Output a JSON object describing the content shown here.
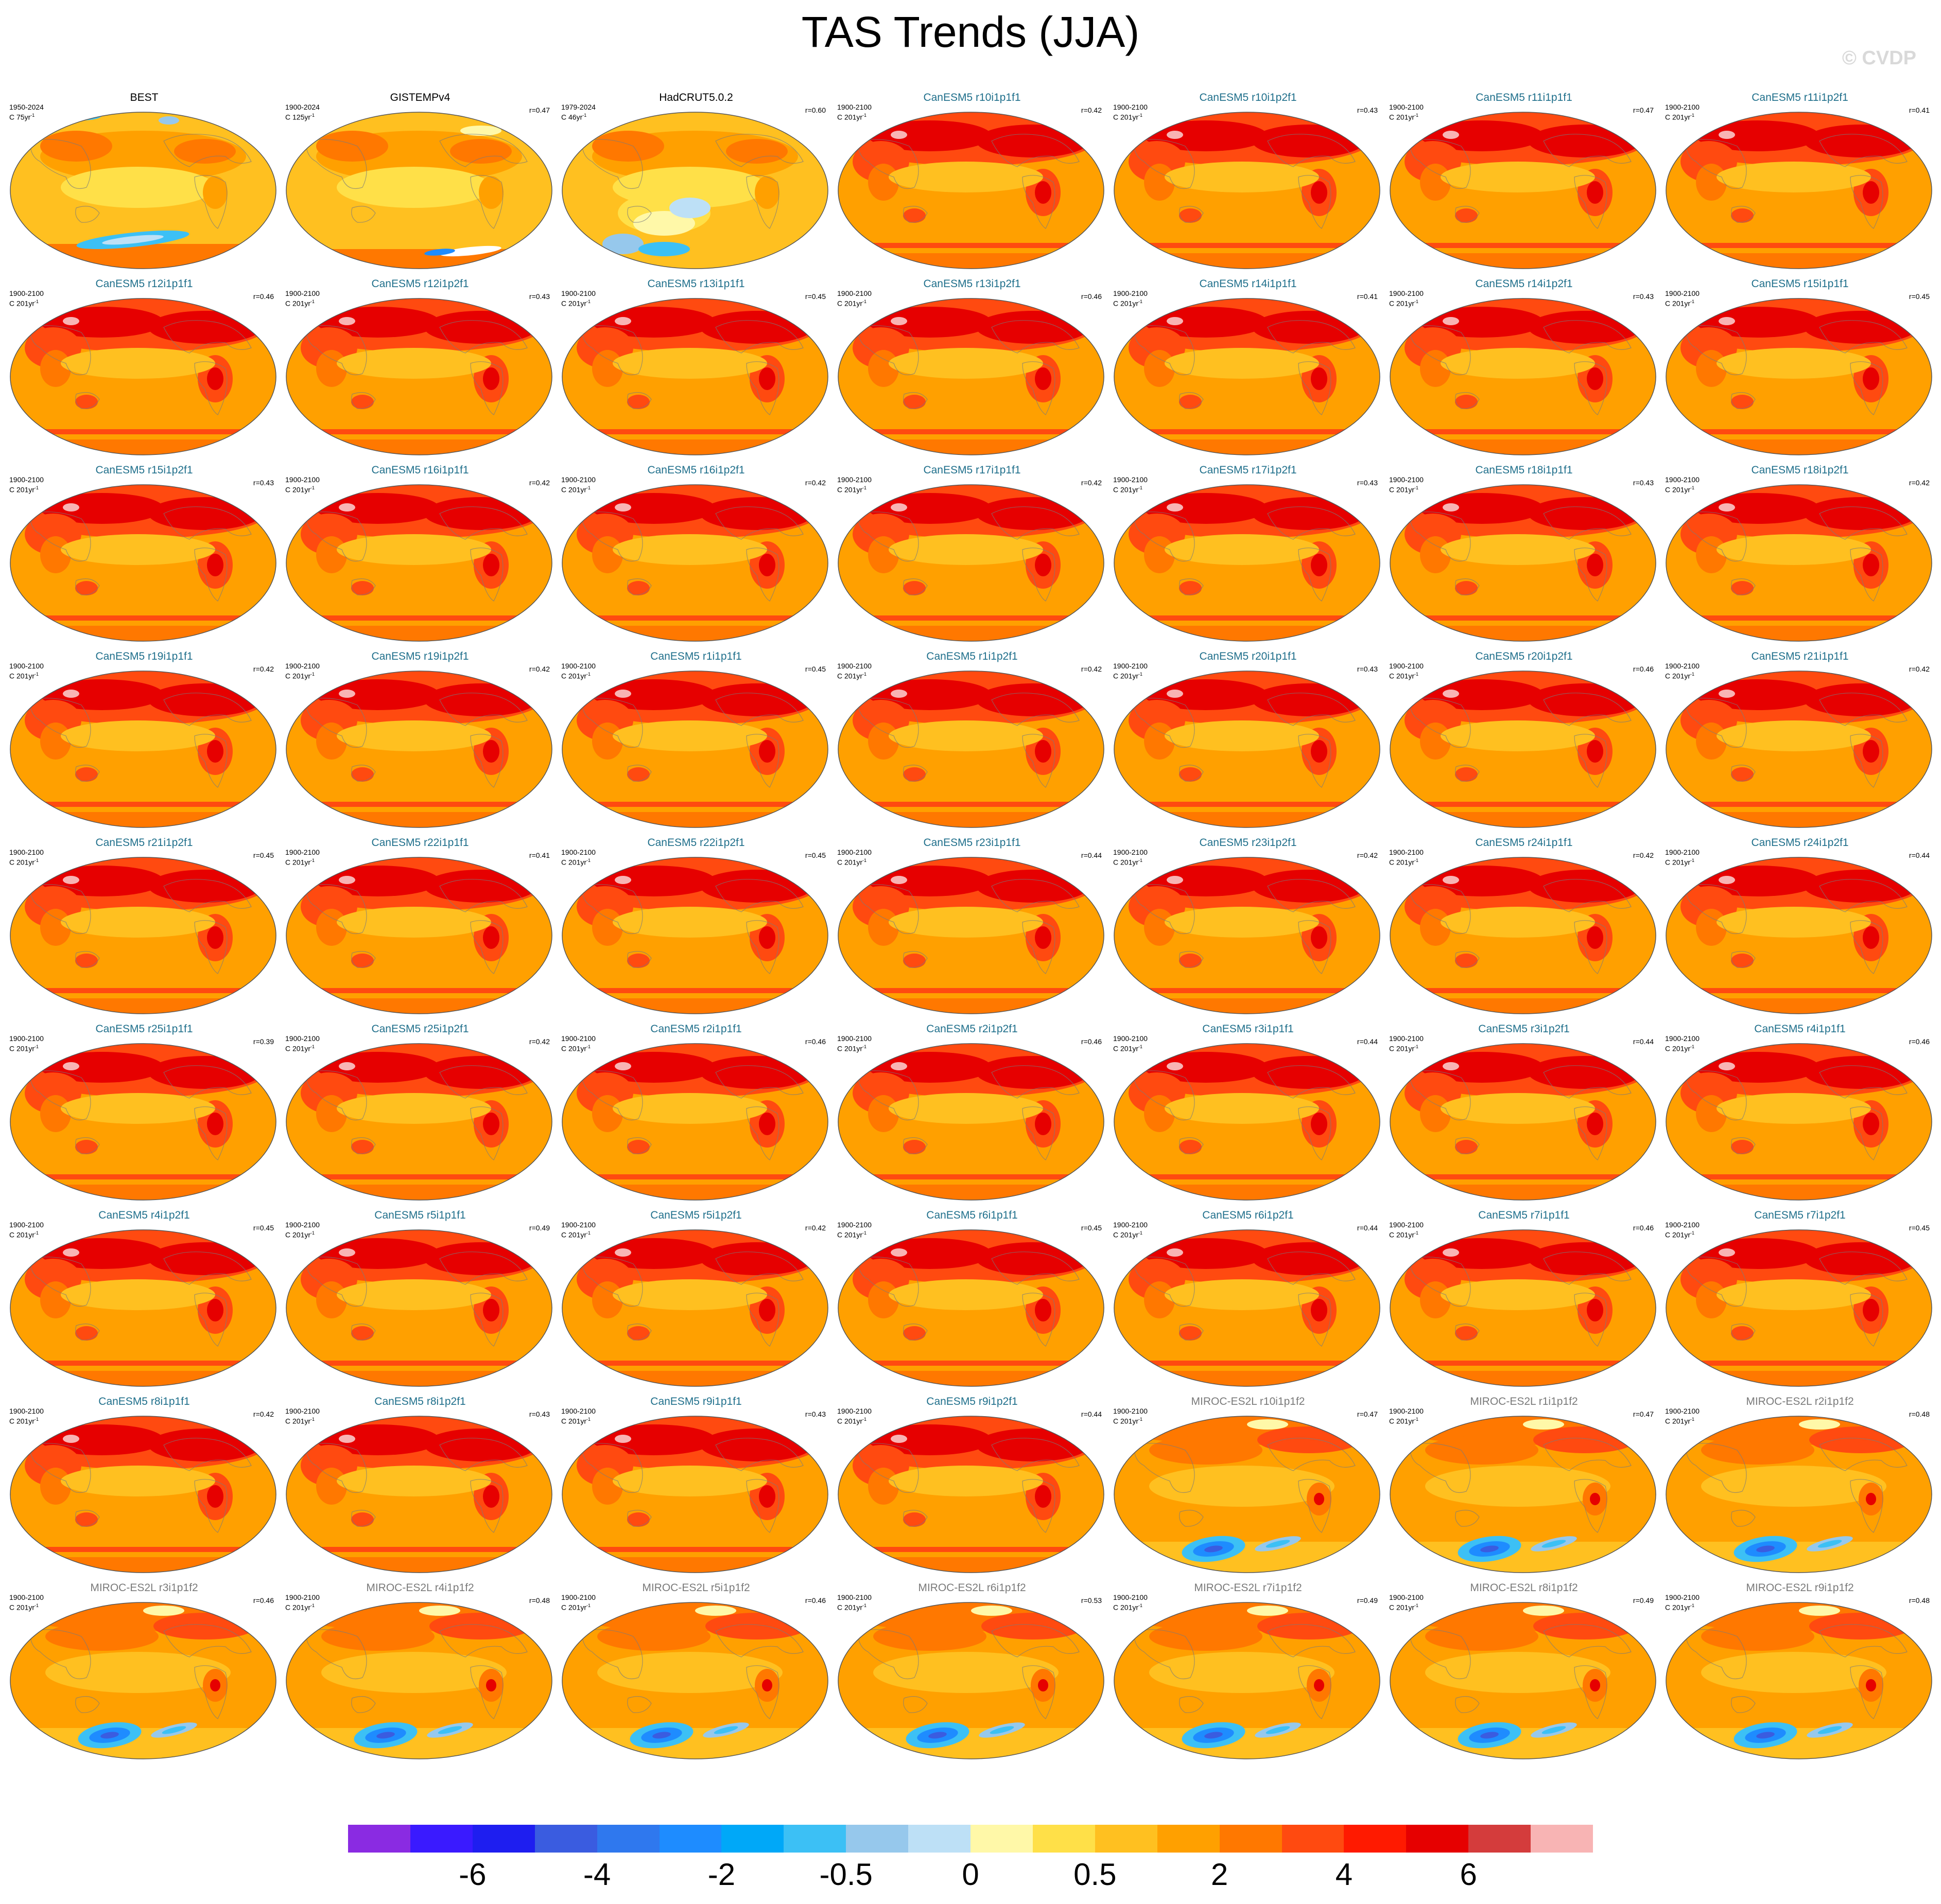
{
  "title": "TAS Trends (JJA)",
  "watermark": "© CVDP",
  "units_exponent": "-1",
  "colorbar": {
    "colors": [
      "#8a2be2",
      "#3a1aff",
      "#1e1ef0",
      "#3a5ce0",
      "#2f78ee",
      "#1e8cff",
      "#00a8f8",
      "#3cc0f5",
      "#96c8ec",
      "#bde0f6",
      "#fff8a8",
      "#ffe048",
      "#ffc020",
      "#ffa000",
      "#ff7800",
      "#ff4a10",
      "#ff1a00",
      "#e60000",
      "#d43c3c",
      "#f8b4b4"
    ],
    "tick_labels": [
      "-6",
      "-4",
      "-2",
      "-0.5",
      "0",
      "0.5",
      "2",
      "4",
      "6"
    ],
    "tick_boundaries": [
      2,
      4,
      6,
      8,
      10,
      12,
      14,
      16,
      18
    ]
  },
  "chart_data": {
    "type": "heatmap",
    "title": "TAS Trends (JJA)",
    "panels": [
      {
        "title": "BEST",
        "period": "1950-2024",
        "units": "C 75yr",
        "r": "",
        "group": "obs"
      },
      {
        "title": "GISTEMPv4",
        "period": "1900-2024",
        "units": "C 125yr",
        "r": "r=0.47",
        "group": "obs"
      },
      {
        "title": "HadCRUT5.0.2",
        "period": "1979-2024",
        "units": "C 46yr",
        "r": "r=0.60",
        "group": "obs"
      },
      {
        "title": "CanESM5 r10i1p1f1",
        "period": "1900-2100",
        "units": "C 201yr",
        "r": "r=0.42",
        "group": "canesm"
      },
      {
        "title": "CanESM5 r10i1p2f1",
        "period": "1900-2100",
        "units": "C 201yr",
        "r": "r=0.43",
        "group": "canesm"
      },
      {
        "title": "CanESM5 r11i1p1f1",
        "period": "1900-2100",
        "units": "C 201yr",
        "r": "r=0.47",
        "group": "canesm"
      },
      {
        "title": "CanESM5 r11i1p2f1",
        "period": "1900-2100",
        "units": "C 201yr",
        "r": "r=0.41",
        "group": "canesm"
      },
      {
        "title": "CanESM5 r12i1p1f1",
        "period": "1900-2100",
        "units": "C 201yr",
        "r": "r=0.46",
        "group": "canesm"
      },
      {
        "title": "CanESM5 r12i1p2f1",
        "period": "1900-2100",
        "units": "C 201yr",
        "r": "r=0.43",
        "group": "canesm"
      },
      {
        "title": "CanESM5 r13i1p1f1",
        "period": "1900-2100",
        "units": "C 201yr",
        "r": "r=0.45",
        "group": "canesm"
      },
      {
        "title": "CanESM5 r13i1p2f1",
        "period": "1900-2100",
        "units": "C 201yr",
        "r": "r=0.46",
        "group": "canesm"
      },
      {
        "title": "CanESM5 r14i1p1f1",
        "period": "1900-2100",
        "units": "C 201yr",
        "r": "r=0.41",
        "group": "canesm"
      },
      {
        "title": "CanESM5 r14i1p2f1",
        "period": "1900-2100",
        "units": "C 201yr",
        "r": "r=0.43",
        "group": "canesm"
      },
      {
        "title": "CanESM5 r15i1p1f1",
        "period": "1900-2100",
        "units": "C 201yr",
        "r": "r=0.45",
        "group": "canesm"
      },
      {
        "title": "CanESM5 r15i1p2f1",
        "period": "1900-2100",
        "units": "C 201yr",
        "r": "r=0.43",
        "group": "canesm"
      },
      {
        "title": "CanESM5 r16i1p1f1",
        "period": "1900-2100",
        "units": "C 201yr",
        "r": "r=0.42",
        "group": "canesm"
      },
      {
        "title": "CanESM5 r16i1p2f1",
        "period": "1900-2100",
        "units": "C 201yr",
        "r": "r=0.42",
        "group": "canesm"
      },
      {
        "title": "CanESM5 r17i1p1f1",
        "period": "1900-2100",
        "units": "C 201yr",
        "r": "r=0.42",
        "group": "canesm"
      },
      {
        "title": "CanESM5 r17i1p2f1",
        "period": "1900-2100",
        "units": "C 201yr",
        "r": "r=0.43",
        "group": "canesm"
      },
      {
        "title": "CanESM5 r18i1p1f1",
        "period": "1900-2100",
        "units": "C 201yr",
        "r": "r=0.43",
        "group": "canesm"
      },
      {
        "title": "CanESM5 r18i1p2f1",
        "period": "1900-2100",
        "units": "C 201yr",
        "r": "r=0.42",
        "group": "canesm"
      },
      {
        "title": "CanESM5 r19i1p1f1",
        "period": "1900-2100",
        "units": "C 201yr",
        "r": "r=0.42",
        "group": "canesm"
      },
      {
        "title": "CanESM5 r19i1p2f1",
        "period": "1900-2100",
        "units": "C 201yr",
        "r": "r=0.42",
        "group": "canesm"
      },
      {
        "title": "CanESM5 r1i1p1f1",
        "period": "1900-2100",
        "units": "C 201yr",
        "r": "r=0.45",
        "group": "canesm"
      },
      {
        "title": "CanESM5 r1i1p2f1",
        "period": "1900-2100",
        "units": "C 201yr",
        "r": "r=0.42",
        "group": "canesm"
      },
      {
        "title": "CanESM5 r20i1p1f1",
        "period": "1900-2100",
        "units": "C 201yr",
        "r": "r=0.43",
        "group": "canesm"
      },
      {
        "title": "CanESM5 r20i1p2f1",
        "period": "1900-2100",
        "units": "C 201yr",
        "r": "r=0.46",
        "group": "canesm"
      },
      {
        "title": "CanESM5 r21i1p1f1",
        "period": "1900-2100",
        "units": "C 201yr",
        "r": "r=0.42",
        "group": "canesm"
      },
      {
        "title": "CanESM5 r21i1p2f1",
        "period": "1900-2100",
        "units": "C 201yr",
        "r": "r=0.45",
        "group": "canesm"
      },
      {
        "title": "CanESM5 r22i1p1f1",
        "period": "1900-2100",
        "units": "C 201yr",
        "r": "r=0.41",
        "group": "canesm"
      },
      {
        "title": "CanESM5 r22i1p2f1",
        "period": "1900-2100",
        "units": "C 201yr",
        "r": "r=0.45",
        "group": "canesm"
      },
      {
        "title": "CanESM5 r23i1p1f1",
        "period": "1900-2100",
        "units": "C 201yr",
        "r": "r=0.44",
        "group": "canesm"
      },
      {
        "title": "CanESM5 r23i1p2f1",
        "period": "1900-2100",
        "units": "C 201yr",
        "r": "r=0.42",
        "group": "canesm"
      },
      {
        "title": "CanESM5 r24i1p1f1",
        "period": "1900-2100",
        "units": "C 201yr",
        "r": "r=0.42",
        "group": "canesm"
      },
      {
        "title": "CanESM5 r24i1p2f1",
        "period": "1900-2100",
        "units": "C 201yr",
        "r": "r=0.44",
        "group": "canesm"
      },
      {
        "title": "CanESM5 r25i1p1f1",
        "period": "1900-2100",
        "units": "C 201yr",
        "r": "r=0.39",
        "group": "canesm"
      },
      {
        "title": "CanESM5 r25i1p2f1",
        "period": "1900-2100",
        "units": "C 201yr",
        "r": "r=0.42",
        "group": "canesm"
      },
      {
        "title": "CanESM5 r2i1p1f1",
        "period": "1900-2100",
        "units": "C 201yr",
        "r": "r=0.46",
        "group": "canesm"
      },
      {
        "title": "CanESM5 r2i1p2f1",
        "period": "1900-2100",
        "units": "C 201yr",
        "r": "r=0.46",
        "group": "canesm"
      },
      {
        "title": "CanESM5 r3i1p1f1",
        "period": "1900-2100",
        "units": "C 201yr",
        "r": "r=0.44",
        "group": "canesm"
      },
      {
        "title": "CanESM5 r3i1p2f1",
        "period": "1900-2100",
        "units": "C 201yr",
        "r": "r=0.44",
        "group": "canesm"
      },
      {
        "title": "CanESM5 r4i1p1f1",
        "period": "1900-2100",
        "units": "C 201yr",
        "r": "r=0.46",
        "group": "canesm"
      },
      {
        "title": "CanESM5 r4i1p2f1",
        "period": "1900-2100",
        "units": "C 201yr",
        "r": "r=0.45",
        "group": "canesm"
      },
      {
        "title": "CanESM5 r5i1p1f1",
        "period": "1900-2100",
        "units": "C 201yr",
        "r": "r=0.49",
        "group": "canesm"
      },
      {
        "title": "CanESM5 r5i1p2f1",
        "period": "1900-2100",
        "units": "C 201yr",
        "r": "r=0.42",
        "group": "canesm"
      },
      {
        "title": "CanESM5 r6i1p1f1",
        "period": "1900-2100",
        "units": "C 201yr",
        "r": "r=0.45",
        "group": "canesm"
      },
      {
        "title": "CanESM5 r6i1p2f1",
        "period": "1900-2100",
        "units": "C 201yr",
        "r": "r=0.44",
        "group": "canesm"
      },
      {
        "title": "CanESM5 r7i1p1f1",
        "period": "1900-2100",
        "units": "C 201yr",
        "r": "r=0.46",
        "group": "canesm"
      },
      {
        "title": "CanESM5 r7i1p2f1",
        "period": "1900-2100",
        "units": "C 201yr",
        "r": "r=0.45",
        "group": "canesm"
      },
      {
        "title": "CanESM5 r8i1p1f1",
        "period": "1900-2100",
        "units": "C 201yr",
        "r": "r=0.42",
        "group": "canesm"
      },
      {
        "title": "CanESM5 r8i1p2f1",
        "period": "1900-2100",
        "units": "C 201yr",
        "r": "r=0.43",
        "group": "canesm"
      },
      {
        "title": "CanESM5 r9i1p1f1",
        "period": "1900-2100",
        "units": "C 201yr",
        "r": "r=0.43",
        "group": "canesm"
      },
      {
        "title": "CanESM5 r9i1p2f1",
        "period": "1900-2100",
        "units": "C 201yr",
        "r": "r=0.44",
        "group": "canesm"
      },
      {
        "title": "MIROC-ES2L r10i1p1f2",
        "period": "1900-2100",
        "units": "C 201yr",
        "r": "r=0.47",
        "group": "miroc"
      },
      {
        "title": "MIROC-ES2L r1i1p1f2",
        "period": "1900-2100",
        "units": "C 201yr",
        "r": "r=0.47",
        "group": "miroc"
      },
      {
        "title": "MIROC-ES2L r2i1p1f2",
        "period": "1900-2100",
        "units": "C 201yr",
        "r": "r=0.48",
        "group": "miroc"
      },
      {
        "title": "MIROC-ES2L r3i1p1f2",
        "period": "1900-2100",
        "units": "C 201yr",
        "r": "r=0.46",
        "group": "miroc"
      },
      {
        "title": "MIROC-ES2L r4i1p1f2",
        "period": "1900-2100",
        "units": "C 201yr",
        "r": "r=0.48",
        "group": "miroc"
      },
      {
        "title": "MIROC-ES2L r5i1p1f2",
        "period": "1900-2100",
        "units": "C 201yr",
        "r": "r=0.46",
        "group": "miroc"
      },
      {
        "title": "MIROC-ES2L r6i1p1f2",
        "period": "1900-2100",
        "units": "C 201yr",
        "r": "r=0.53",
        "group": "miroc"
      },
      {
        "title": "MIROC-ES2L r7i1p1f2",
        "period": "1900-2100",
        "units": "C 201yr",
        "r": "r=0.49",
        "group": "miroc"
      },
      {
        "title": "MIROC-ES2L r8i1p1f2",
        "period": "1900-2100",
        "units": "C 201yr",
        "r": "r=0.49",
        "group": "miroc"
      },
      {
        "title": "MIROC-ES2L r9i1p1f2",
        "period": "1900-2100",
        "units": "C 201yr",
        "r": "r=0.48",
        "group": "miroc"
      }
    ]
  }
}
